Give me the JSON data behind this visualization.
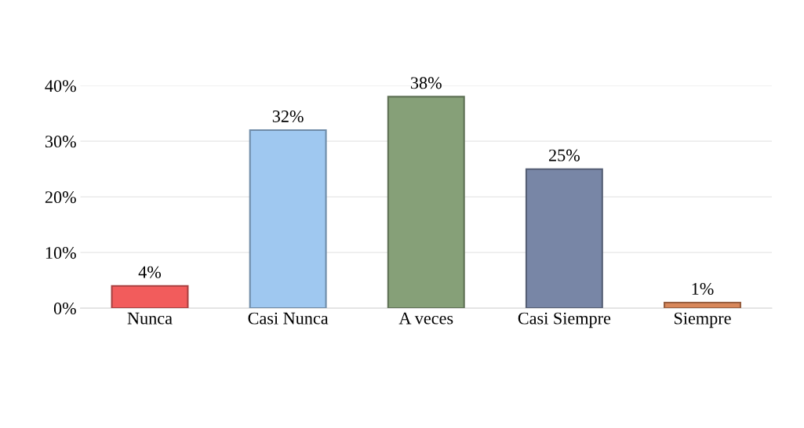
{
  "chart_data": {
    "type": "bar",
    "categories": [
      "Nunca",
      "Casi Nunca",
      "A veces",
      "Casi Siempre",
      "Siempre"
    ],
    "values": [
      4,
      32,
      38,
      25,
      1
    ],
    "value_labels": [
      "4%",
      "32%",
      "38%",
      "25%",
      "1%"
    ],
    "colors": [
      "#f25c5c",
      "#9fc8f0",
      "#86a078",
      "#7886a6",
      "#d8875a"
    ],
    "ylim": [
      0,
      40
    ],
    "yticks": [
      {
        "value": 0,
        "label": "0%"
      },
      {
        "value": 10,
        "label": "10%"
      },
      {
        "value": 20,
        "label": "20%"
      },
      {
        "value": 30,
        "label": "30%"
      },
      {
        "value": 40,
        "label": "40%"
      }
    ],
    "grid": "y"
  }
}
